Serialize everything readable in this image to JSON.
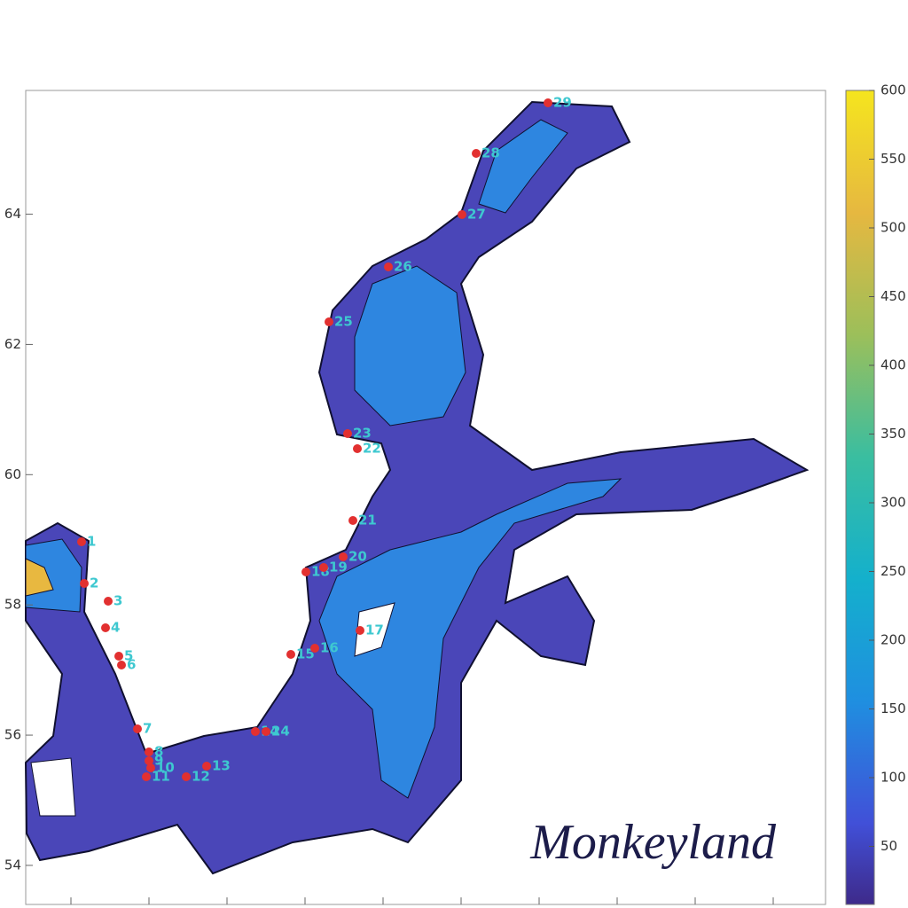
{
  "map": {
    "ylim": [
      53.4,
      65.9
    ],
    "yticks": [
      64,
      62,
      60,
      58,
      56,
      54
    ],
    "colorbar": {
      "lim": [
        0,
        600
      ],
      "ticks": [
        600,
        550,
        500,
        450,
        400,
        350,
        300,
        250,
        200,
        150,
        100,
        50
      ]
    },
    "stations": [
      "1",
      "2",
      "3",
      "4",
      "5",
      "6",
      "7",
      "8",
      "9",
      "10",
      "11",
      "12",
      "13",
      "14",
      "15",
      "16",
      "17",
      "18",
      "19",
      "20",
      "21",
      "22",
      "23",
      "24",
      "25",
      "26",
      "27",
      "28",
      "29"
    ],
    "watermark": "Monkeyland"
  }
}
